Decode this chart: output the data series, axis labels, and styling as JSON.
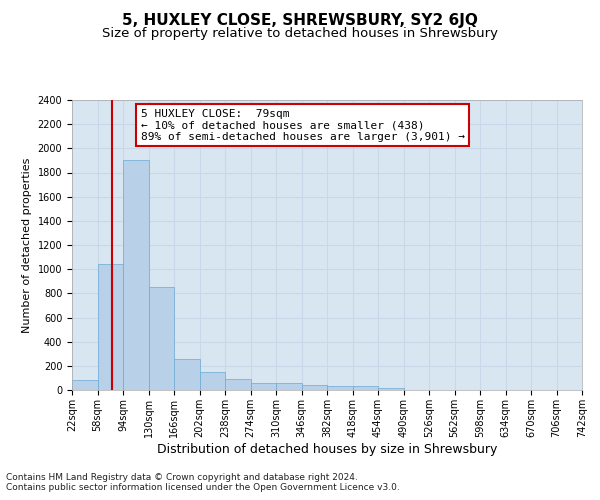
{
  "title": "5, HUXLEY CLOSE, SHREWSBURY, SY2 6JQ",
  "subtitle": "Size of property relative to detached houses in Shrewsbury",
  "xlabel": "Distribution of detached houses by size in Shrewsbury",
  "ylabel": "Number of detached properties",
  "bin_edges": [
    22,
    58,
    94,
    130,
    166,
    202,
    238,
    274,
    310,
    346,
    382,
    418,
    454,
    490,
    526,
    562,
    598,
    634,
    670,
    706,
    742
  ],
  "bar_heights": [
    80,
    1040,
    1900,
    850,
    260,
    150,
    90,
    55,
    55,
    45,
    30,
    30,
    20,
    0,
    0,
    0,
    0,
    0,
    0,
    0
  ],
  "bar_color": "#b8d0e8",
  "bar_edgecolor": "#6aaad4",
  "grid_color": "#c8d8e8",
  "background_color": "#d8e6f2",
  "property_line_x": 79,
  "property_line_color": "#cc0000",
  "annotation_text": "5 HUXLEY CLOSE:  79sqm\n← 10% of detached houses are smaller (438)\n89% of semi-detached houses are larger (3,901) →",
  "annotation_box_facecolor": "#ffffff",
  "annotation_box_edgecolor": "#cc0000",
  "ylim": [
    0,
    2400
  ],
  "yticks": [
    0,
    200,
    400,
    600,
    800,
    1000,
    1200,
    1400,
    1600,
    1800,
    2000,
    2200,
    2400
  ],
  "footnote1": "Contains HM Land Registry data © Crown copyright and database right 2024.",
  "footnote2": "Contains public sector information licensed under the Open Government Licence v3.0.",
  "title_fontsize": 11,
  "subtitle_fontsize": 9.5,
  "tick_label_fontsize": 7,
  "ylabel_fontsize": 8,
  "xlabel_fontsize": 9,
  "annotation_fontsize": 8,
  "footnote_fontsize": 6.5
}
